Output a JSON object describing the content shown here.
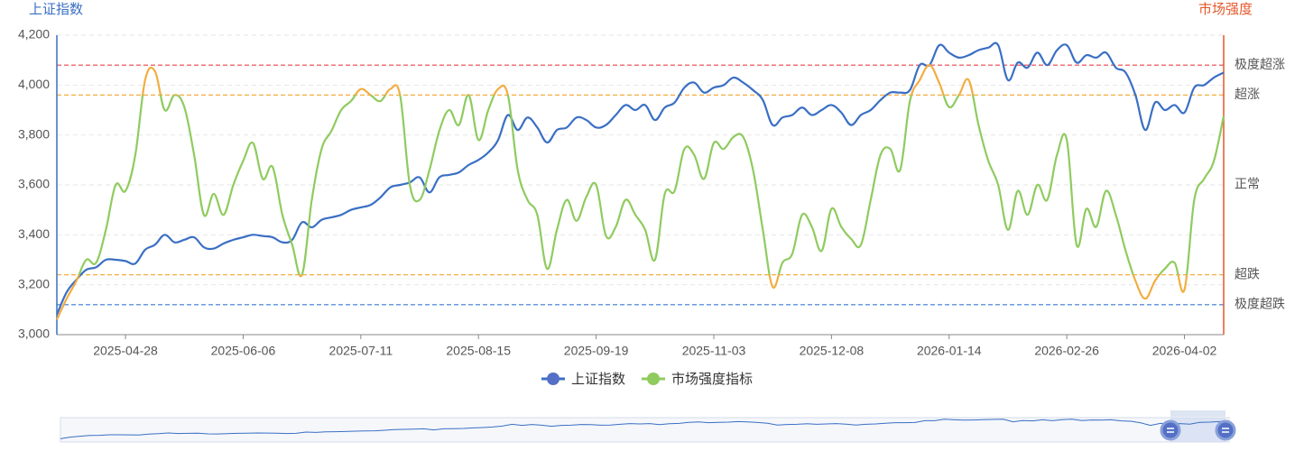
{
  "chart_data": {
    "type": "line",
    "y_axis_label": "上证指数",
    "y2_axis_label": "市场强度",
    "categories": [
      null,
      null,
      null,
      null,
      null,
      null,
      null,
      "2025-04-28",
      null,
      null,
      null,
      null,
      null,
      null,
      null,
      null,
      null,
      null,
      null,
      "2025-06-06",
      null,
      null,
      null,
      null,
      null,
      null,
      null,
      null,
      null,
      null,
      null,
      "2025-07-11",
      null,
      null,
      null,
      null,
      null,
      null,
      null,
      null,
      null,
      null,
      null,
      "2025-08-15",
      null,
      null,
      null,
      null,
      null,
      null,
      null,
      null,
      null,
      null,
      null,
      "2025-09-19",
      null,
      null,
      null,
      null,
      null,
      null,
      null,
      null,
      null,
      null,
      null,
      "2025-11-03",
      null,
      null,
      null,
      null,
      null,
      null,
      null,
      null,
      null,
      null,
      null,
      "2025-12-08",
      null,
      null,
      null,
      null,
      null,
      null,
      null,
      null,
      null,
      null,
      null,
      "2026-01-14",
      null,
      null,
      null,
      null,
      null,
      null,
      null,
      null,
      null,
      null,
      null,
      "2026-02-26",
      null,
      null,
      null,
      null,
      null,
      null,
      null,
      null,
      null,
      null,
      null,
      "2026-04-02",
      null,
      null,
      null,
      null
    ],
    "series": [
      {
        "name": "上证指数",
        "color": "#3a6fc4",
        "axis": "y",
        "values": [
          3080,
          3170,
          3220,
          3260,
          3270,
          3300,
          3300,
          3295,
          3285,
          3340,
          3360,
          3400,
          3370,
          3380,
          3390,
          3350,
          3345,
          3365,
          3380,
          3390,
          3400,
          3395,
          3390,
          3370,
          3380,
          3450,
          3430,
          3460,
          3470,
          3480,
          3500,
          3510,
          3520,
          3550,
          3590,
          3600,
          3610,
          3630,
          3570,
          3630,
          3640,
          3650,
          3680,
          3700,
          3730,
          3780,
          3880,
          3820,
          3870,
          3830,
          3770,
          3820,
          3830,
          3870,
          3860,
          3830,
          3840,
          3880,
          3920,
          3900,
          3920,
          3860,
          3910,
          3930,
          3990,
          4010,
          3970,
          3990,
          4000,
          4030,
          4010,
          3980,
          3940,
          3840,
          3870,
          3880,
          3910,
          3880,
          3900,
          3920,
          3890,
          3840,
          3880,
          3900,
          3940,
          3970,
          3970,
          3980,
          4080,
          4080,
          4160,
          4130,
          4110,
          4120,
          4140,
          4150,
          4160,
          4020,
          4090,
          4070,
          4130,
          4080,
          4140,
          4160,
          4090,
          4120,
          4110,
          4130,
          4070,
          4050,
          3960,
          3820,
          3930,
          3900,
          3920,
          3890,
          3990,
          4000,
          4030,
          4050
        ]
      },
      {
        "name": "市场强度指标",
        "color": "#8fcb5f",
        "extreme_color": "#f2ad42",
        "axis": "y2",
        "values": [
          5,
          12,
          18,
          25,
          24,
          35,
          50,
          48,
          60,
          85,
          88,
          75,
          80,
          76,
          60,
          40,
          47,
          40,
          50,
          58,
          64,
          52,
          56,
          40,
          30,
          20,
          45,
          62,
          68,
          75,
          78,
          82,
          80,
          78,
          82,
          80,
          50,
          45,
          55,
          68,
          75,
          70,
          80,
          65,
          75,
          82,
          80,
          55,
          45,
          40,
          22,
          35,
          45,
          38,
          46,
          50,
          33,
          36,
          45,
          40,
          35,
          25,
          47,
          48,
          62,
          60,
          52,
          64,
          62,
          66,
          66,
          55,
          35,
          16,
          24,
          27,
          40,
          36,
          28,
          42,
          36,
          32,
          30,
          45,
          60,
          62,
          55,
          78,
          85,
          90,
          84,
          76,
          80,
          85,
          70,
          58,
          50,
          35,
          48,
          40,
          50,
          45,
          60,
          65,
          30,
          42,
          36,
          48,
          40,
          28,
          18,
          12,
          18,
          22,
          24,
          15,
          45,
          52,
          58,
          73
        ]
      }
    ],
    "ylim": [
      3000,
      4200
    ],
    "yticks": [
      {
        "value": 3000,
        "label": "3,000"
      },
      {
        "value": 3200,
        "label": "3,200"
      },
      {
        "value": 3400,
        "label": "3,400"
      },
      {
        "value": 3600,
        "label": "3,600"
      },
      {
        "value": 3800,
        "label": "3,800"
      },
      {
        "value": 4000,
        "label": "4,000"
      },
      {
        "value": 4200,
        "label": "4,200"
      }
    ],
    "y2lim": [
      0,
      100
    ],
    "y2ticks": [
      {
        "value": 90,
        "label": "极度超涨"
      },
      {
        "value": 80,
        "label": "超涨"
      },
      {
        "value": 50,
        "label": "正常"
      },
      {
        "value": 20,
        "label": "超跌"
      },
      {
        "value": 10,
        "label": "极度超跌"
      }
    ],
    "threshold_lines": [
      {
        "value": 90,
        "color": "#e8434a"
      },
      {
        "value": 80,
        "color": "#f2ad42"
      },
      {
        "value": 20,
        "color": "#f2ad42"
      },
      {
        "value": 10,
        "color": "#3a7bd5"
      }
    ],
    "extreme_band": [
      20,
      80
    ],
    "grid": true,
    "legend": "bottom"
  }
}
